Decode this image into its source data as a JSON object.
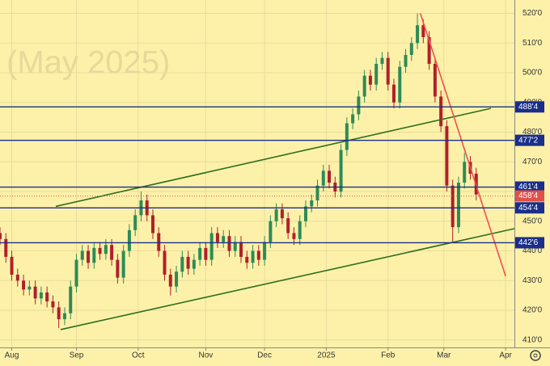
{
  "chart_data": {
    "type": "candlestick",
    "watermark": "(May 2025)",
    "background": "#fdf1a9",
    "up_color": "#2e8b57",
    "down_color": "#b0202a",
    "grid": true,
    "xlim": [
      0,
      175
    ],
    "ylim": [
      407.5,
      524.5
    ],
    "xticks": [
      {
        "value": 4,
        "label": "Aug"
      },
      {
        "value": 26,
        "label": "Sep"
      },
      {
        "value": 47,
        "label": "Oct"
      },
      {
        "value": 70,
        "label": "Nov"
      },
      {
        "value": 90,
        "label": "Dec"
      },
      {
        "value": 111,
        "label": "2025"
      },
      {
        "value": 132,
        "label": "Feb"
      },
      {
        "value": 151,
        "label": "Mar"
      },
      {
        "value": 172,
        "label": "Apr"
      }
    ],
    "yticks": [
      {
        "value": 410,
        "label": "410'0"
      },
      {
        "value": 420,
        "label": "420'0"
      },
      {
        "value": 430,
        "label": "430'0"
      },
      {
        "value": 440,
        "label": "440'0"
      },
      {
        "value": 450,
        "label": "450'0"
      },
      {
        "value": 460,
        "label": "460'0"
      },
      {
        "value": 470,
        "label": "470'0"
      },
      {
        "value": 480,
        "label": "480'0"
      },
      {
        "value": 490,
        "label": "490'0"
      },
      {
        "value": 500,
        "label": "500'0"
      },
      {
        "value": 510,
        "label": "510'0"
      },
      {
        "value": 520,
        "label": "520'0"
      }
    ],
    "x": [
      0,
      2,
      4,
      6,
      8,
      10,
      12,
      14,
      16,
      18,
      20,
      22,
      24,
      26,
      28,
      30,
      32,
      34,
      36,
      38,
      40,
      42,
      44,
      46,
      48,
      50,
      52,
      54,
      56,
      58,
      60,
      62,
      64,
      66,
      68,
      70,
      72,
      74,
      76,
      78,
      80,
      82,
      84,
      86,
      88,
      90,
      92,
      94,
      96,
      98,
      100,
      102,
      104,
      106,
      108,
      110,
      112,
      114,
      116,
      118,
      120,
      122,
      124,
      126,
      128,
      130,
      132,
      134,
      136,
      138,
      140,
      142,
      144,
      146,
      148,
      150,
      152,
      154,
      156,
      158,
      160,
      162
    ],
    "open": [
      446,
      444,
      438,
      432,
      430,
      427,
      428,
      424,
      426,
      423,
      421,
      417,
      419,
      428,
      437,
      440,
      436,
      441,
      439,
      442,
      437,
      431,
      440,
      447,
      452,
      457,
      452,
      446,
      440,
      432,
      428,
      433,
      438,
      434,
      437,
      441,
      437,
      446,
      443,
      445,
      440,
      443,
      438,
      436,
      440,
      437,
      443,
      450,
      454,
      451,
      446,
      444,
      450,
      455,
      457,
      462,
      467,
      463,
      460,
      474,
      483,
      486,
      492,
      499,
      496,
      503,
      505,
      496,
      490,
      502,
      506,
      510,
      516,
      512,
      503,
      492,
      482,
      462,
      448,
      463,
      470,
      466
    ],
    "high": [
      448,
      446,
      440,
      434,
      432,
      430,
      430,
      428,
      428,
      425,
      423,
      421,
      430,
      439,
      442,
      442,
      443,
      443,
      444,
      444,
      439,
      442,
      449,
      454,
      460,
      459,
      454,
      448,
      442,
      434,
      435,
      440,
      440,
      439,
      443,
      443,
      448,
      448,
      447,
      447,
      445,
      445,
      440,
      442,
      442,
      445,
      452,
      456,
      456,
      453,
      448,
      452,
      457,
      459,
      464,
      469,
      469,
      465,
      476,
      485,
      488,
      494,
      501,
      501,
      505,
      507,
      507,
      498,
      504,
      508,
      512,
      520,
      518,
      514,
      505,
      494,
      484,
      464,
      465,
      473,
      472,
      468
    ],
    "low": [
      442,
      436,
      430,
      428,
      425,
      425,
      422,
      422,
      421,
      419,
      414,
      415,
      417,
      426,
      435,
      434,
      434,
      437,
      437,
      435,
      429,
      429,
      438,
      445,
      450,
      450,
      444,
      438,
      430,
      425,
      426,
      431,
      432,
      432,
      435,
      435,
      435,
      441,
      441,
      438,
      438,
      436,
      434,
      434,
      435,
      435,
      441,
      448,
      449,
      444,
      442,
      442,
      448,
      453,
      455,
      460,
      461,
      458,
      458,
      472,
      481,
      484,
      490,
      494,
      494,
      501,
      494,
      488,
      488,
      500,
      504,
      508,
      510,
      501,
      490,
      480,
      460,
      443,
      446,
      461,
      464,
      457
    ],
    "close": [
      444,
      438,
      432,
      430,
      427,
      428,
      424,
      426,
      423,
      421,
      417,
      419,
      428,
      437,
      440,
      436,
      441,
      439,
      442,
      437,
      431,
      440,
      447,
      452,
      457,
      452,
      446,
      440,
      432,
      428,
      433,
      438,
      434,
      437,
      441,
      437,
      446,
      443,
      445,
      440,
      443,
      438,
      436,
      440,
      437,
      443,
      450,
      454,
      451,
      446,
      444,
      450,
      455,
      457,
      462,
      467,
      463,
      460,
      474,
      483,
      486,
      492,
      499,
      496,
      503,
      505,
      496,
      490,
      502,
      506,
      510,
      516,
      512,
      503,
      492,
      482,
      462,
      448,
      463,
      470,
      466,
      459
    ],
    "levels": [
      {
        "value": 488.5,
        "label": "488'4"
      },
      {
        "value": 477.25,
        "label": "477'2"
      },
      {
        "value": 461.5,
        "label": "461'4"
      },
      {
        "value": 454.5,
        "label": "454'4"
      },
      {
        "value": 442.75,
        "label": "442'6"
      }
    ],
    "level_color": "#1a2e8a",
    "last_price": {
      "value": 458.5,
      "label": "458'4",
      "color": "#e0504a"
    },
    "trendlines": [
      {
        "x": [
          19,
          167
        ],
        "y": [
          455,
          488
        ],
        "color": "#2d6e1e"
      },
      {
        "x": [
          20.6,
          175
        ],
        "y": [
          413.5,
          447.5
        ],
        "color": "#2d6e1e"
      },
      {
        "x": [
          143,
          172
        ],
        "y": [
          520,
          431.5
        ],
        "color": "#f05050"
      }
    ]
  }
}
